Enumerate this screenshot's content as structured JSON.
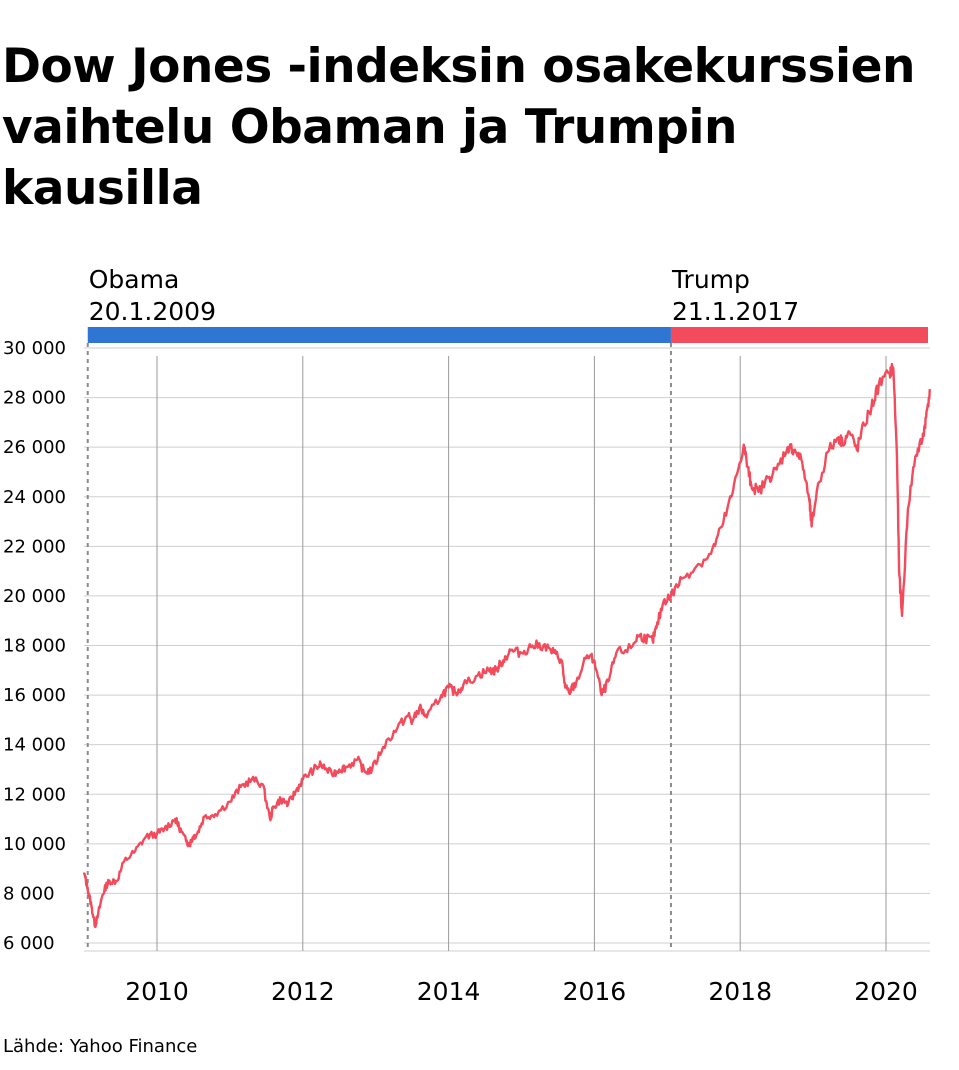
{
  "chart_data": {
    "type": "line",
    "title": "Dow Jones -indeksin osakekurssien vaihtelu Obaman ja Trumpin kausilla",
    "source": "Lähde: Yahoo Finance",
    "xlabel": "",
    "ylabel": "",
    "xlim": [
      2009.0,
      2020.6
    ],
    "ylim": [
      6000,
      30000
    ],
    "yticks": [
      {
        "value": 6000,
        "label": "6 000"
      },
      {
        "value": 8000,
        "label": "8 000"
      },
      {
        "value": 10000,
        "label": "10 000"
      },
      {
        "value": 12000,
        "label": "12 000"
      },
      {
        "value": 14000,
        "label": "14 000"
      },
      {
        "value": 16000,
        "label": "16 000"
      },
      {
        "value": 18000,
        "label": "18 000"
      },
      {
        "value": 20000,
        "label": "20 000"
      },
      {
        "value": 22000,
        "label": "22 000"
      },
      {
        "value": 24000,
        "label": "24 000"
      },
      {
        "value": 26000,
        "label": "26 000"
      },
      {
        "value": 28000,
        "label": "28 000"
      },
      {
        "value": 30000,
        "label": "30 000"
      }
    ],
    "xticks": [
      {
        "value": 2010,
        "label": "2010"
      },
      {
        "value": 2012,
        "label": "2012"
      },
      {
        "value": 2014,
        "label": "2014"
      },
      {
        "value": 2016,
        "label": "2016"
      },
      {
        "value": 2018,
        "label": "2018"
      },
      {
        "value": 2020,
        "label": "2020"
      }
    ],
    "grid": true,
    "terms": [
      {
        "name": "Obama",
        "date_label": "20.1.2009",
        "start": 2009.05,
        "end": 2017.05,
        "color": "#2f76d2"
      },
      {
        "name": "Trump",
        "date_label": "21.1.2017",
        "start": 2017.05,
        "end": 2020.6,
        "color": "#f34a5c"
      }
    ],
    "series": [
      {
        "color": "#f34a5c",
        "x": [
          2009.0,
          2009.05,
          2009.1,
          2009.15,
          2009.18,
          2009.25,
          2009.3,
          2009.35,
          2009.45,
          2009.55,
          2009.7,
          2009.85,
          2010.0,
          2010.1,
          2010.25,
          2010.3,
          2010.4,
          2010.45,
          2010.5,
          2010.55,
          2010.65,
          2010.8,
          2011.0,
          2011.15,
          2011.3,
          2011.45,
          2011.55,
          2011.6,
          2011.7,
          2011.8,
          2011.9,
          2012.0,
          2012.15,
          2012.25,
          2012.4,
          2012.5,
          2012.6,
          2012.75,
          2012.85,
          2012.95,
          2013.1,
          2013.3,
          2013.45,
          2013.5,
          2013.6,
          2013.7,
          2013.9,
          2014.0,
          2014.1,
          2014.2,
          2014.4,
          2014.55,
          2014.65,
          2014.75,
          2014.85,
          2015.0,
          2015.15,
          2015.3,
          2015.45,
          2015.55,
          2015.6,
          2015.65,
          2015.75,
          2015.9,
          2016.0,
          2016.1,
          2016.2,
          2016.3,
          2016.5,
          2016.6,
          2016.7,
          2016.8,
          2016.85,
          2016.95,
          2017.05,
          2017.2,
          2017.4,
          2017.6,
          2017.75,
          2017.9,
          2018.05,
          2018.1,
          2018.15,
          2018.25,
          2018.4,
          2018.5,
          2018.65,
          2018.75,
          2018.85,
          2018.95,
          2018.98,
          2019.05,
          2019.2,
          2019.35,
          2019.4,
          2019.5,
          2019.6,
          2019.7,
          2019.8,
          2019.9,
          2020.05,
          2020.1,
          2020.15,
          2020.18,
          2020.22,
          2020.3,
          2020.4,
          2020.5,
          2020.55,
          2020.6
        ],
        "values": [
          8800,
          8200,
          7500,
          6700,
          7000,
          7900,
          8300,
          8500,
          8500,
          9300,
          9700,
          10300,
          10400,
          10600,
          11000,
          10700,
          10100,
          10000,
          10300,
          10400,
          11100,
          11200,
          11700,
          12300,
          12600,
          12400,
          11000,
          11500,
          11800,
          11600,
          12100,
          12600,
          13000,
          13200,
          12800,
          13000,
          13100,
          13400,
          12900,
          13000,
          13900,
          14700,
          15200,
          14900,
          15500,
          15100,
          16000,
          16300,
          16100,
          16400,
          16800,
          17000,
          17000,
          17400,
          17800,
          17700,
          18000,
          18000,
          17700,
          17400,
          16300,
          16100,
          16500,
          17600,
          17400,
          16000,
          16600,
          17700,
          17900,
          18400,
          18300,
          18200,
          18700,
          19800,
          20000,
          20700,
          21200,
          21700,
          22800,
          24200,
          26100,
          25200,
          24500,
          24200,
          24800,
          25100,
          26000,
          25900,
          25400,
          23800,
          22800,
          24200,
          25800,
          26400,
          26200,
          26600,
          25900,
          26900,
          27600,
          28500,
          29000,
          29200,
          25700,
          21000,
          19200,
          23500,
          25600,
          26300,
          27200,
          28300
        ]
      }
    ]
  }
}
